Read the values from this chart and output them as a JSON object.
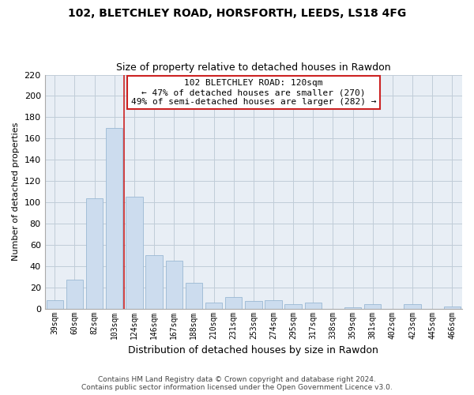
{
  "title1": "102, BLETCHLEY ROAD, HORSFORTH, LEEDS, LS18 4FG",
  "title2": "Size of property relative to detached houses in Rawdon",
  "xlabel": "Distribution of detached houses by size in Rawdon",
  "ylabel": "Number of detached properties",
  "bar_labels": [
    "39sqm",
    "60sqm",
    "82sqm",
    "103sqm",
    "124sqm",
    "146sqm",
    "167sqm",
    "188sqm",
    "210sqm",
    "231sqm",
    "253sqm",
    "274sqm",
    "295sqm",
    "317sqm",
    "338sqm",
    "359sqm",
    "381sqm",
    "402sqm",
    "423sqm",
    "445sqm",
    "466sqm"
  ],
  "bar_heights": [
    8,
    27,
    104,
    170,
    105,
    50,
    45,
    24,
    6,
    11,
    7,
    8,
    4,
    6,
    0,
    1,
    4,
    0,
    4,
    0,
    2
  ],
  "bar_color": "#ccdcee",
  "bar_edge_color": "#9ab8d4",
  "property_line_index": 3,
  "annotation_line1": "102 BLETCHLEY ROAD: 120sqm",
  "annotation_line2": "← 47% of detached houses are smaller (270)",
  "annotation_line3": "49% of semi-detached houses are larger (282) →",
  "annotation_box_color": "#ffffff",
  "annotation_box_edge_color": "#cc2222",
  "ylim": [
    0,
    220
  ],
  "yticks": [
    0,
    20,
    40,
    60,
    80,
    100,
    120,
    140,
    160,
    180,
    200,
    220
  ],
  "footer_line1": "Contains HM Land Registry data © Crown copyright and database right 2024.",
  "footer_line2": "Contains public sector information licensed under the Open Government Licence v3.0.",
  "bg_color": "#ffffff",
  "plot_bg_color": "#e8eef5",
  "grid_color": "#c0ccd8",
  "property_line_color": "#cc2222",
  "title1_fontsize": 10,
  "title2_fontsize": 9,
  "ylabel_fontsize": 8,
  "xlabel_fontsize": 9,
  "tick_fontsize": 8,
  "xtick_fontsize": 7,
  "annotation_fontsize": 8,
  "footer_fontsize": 6.5
}
